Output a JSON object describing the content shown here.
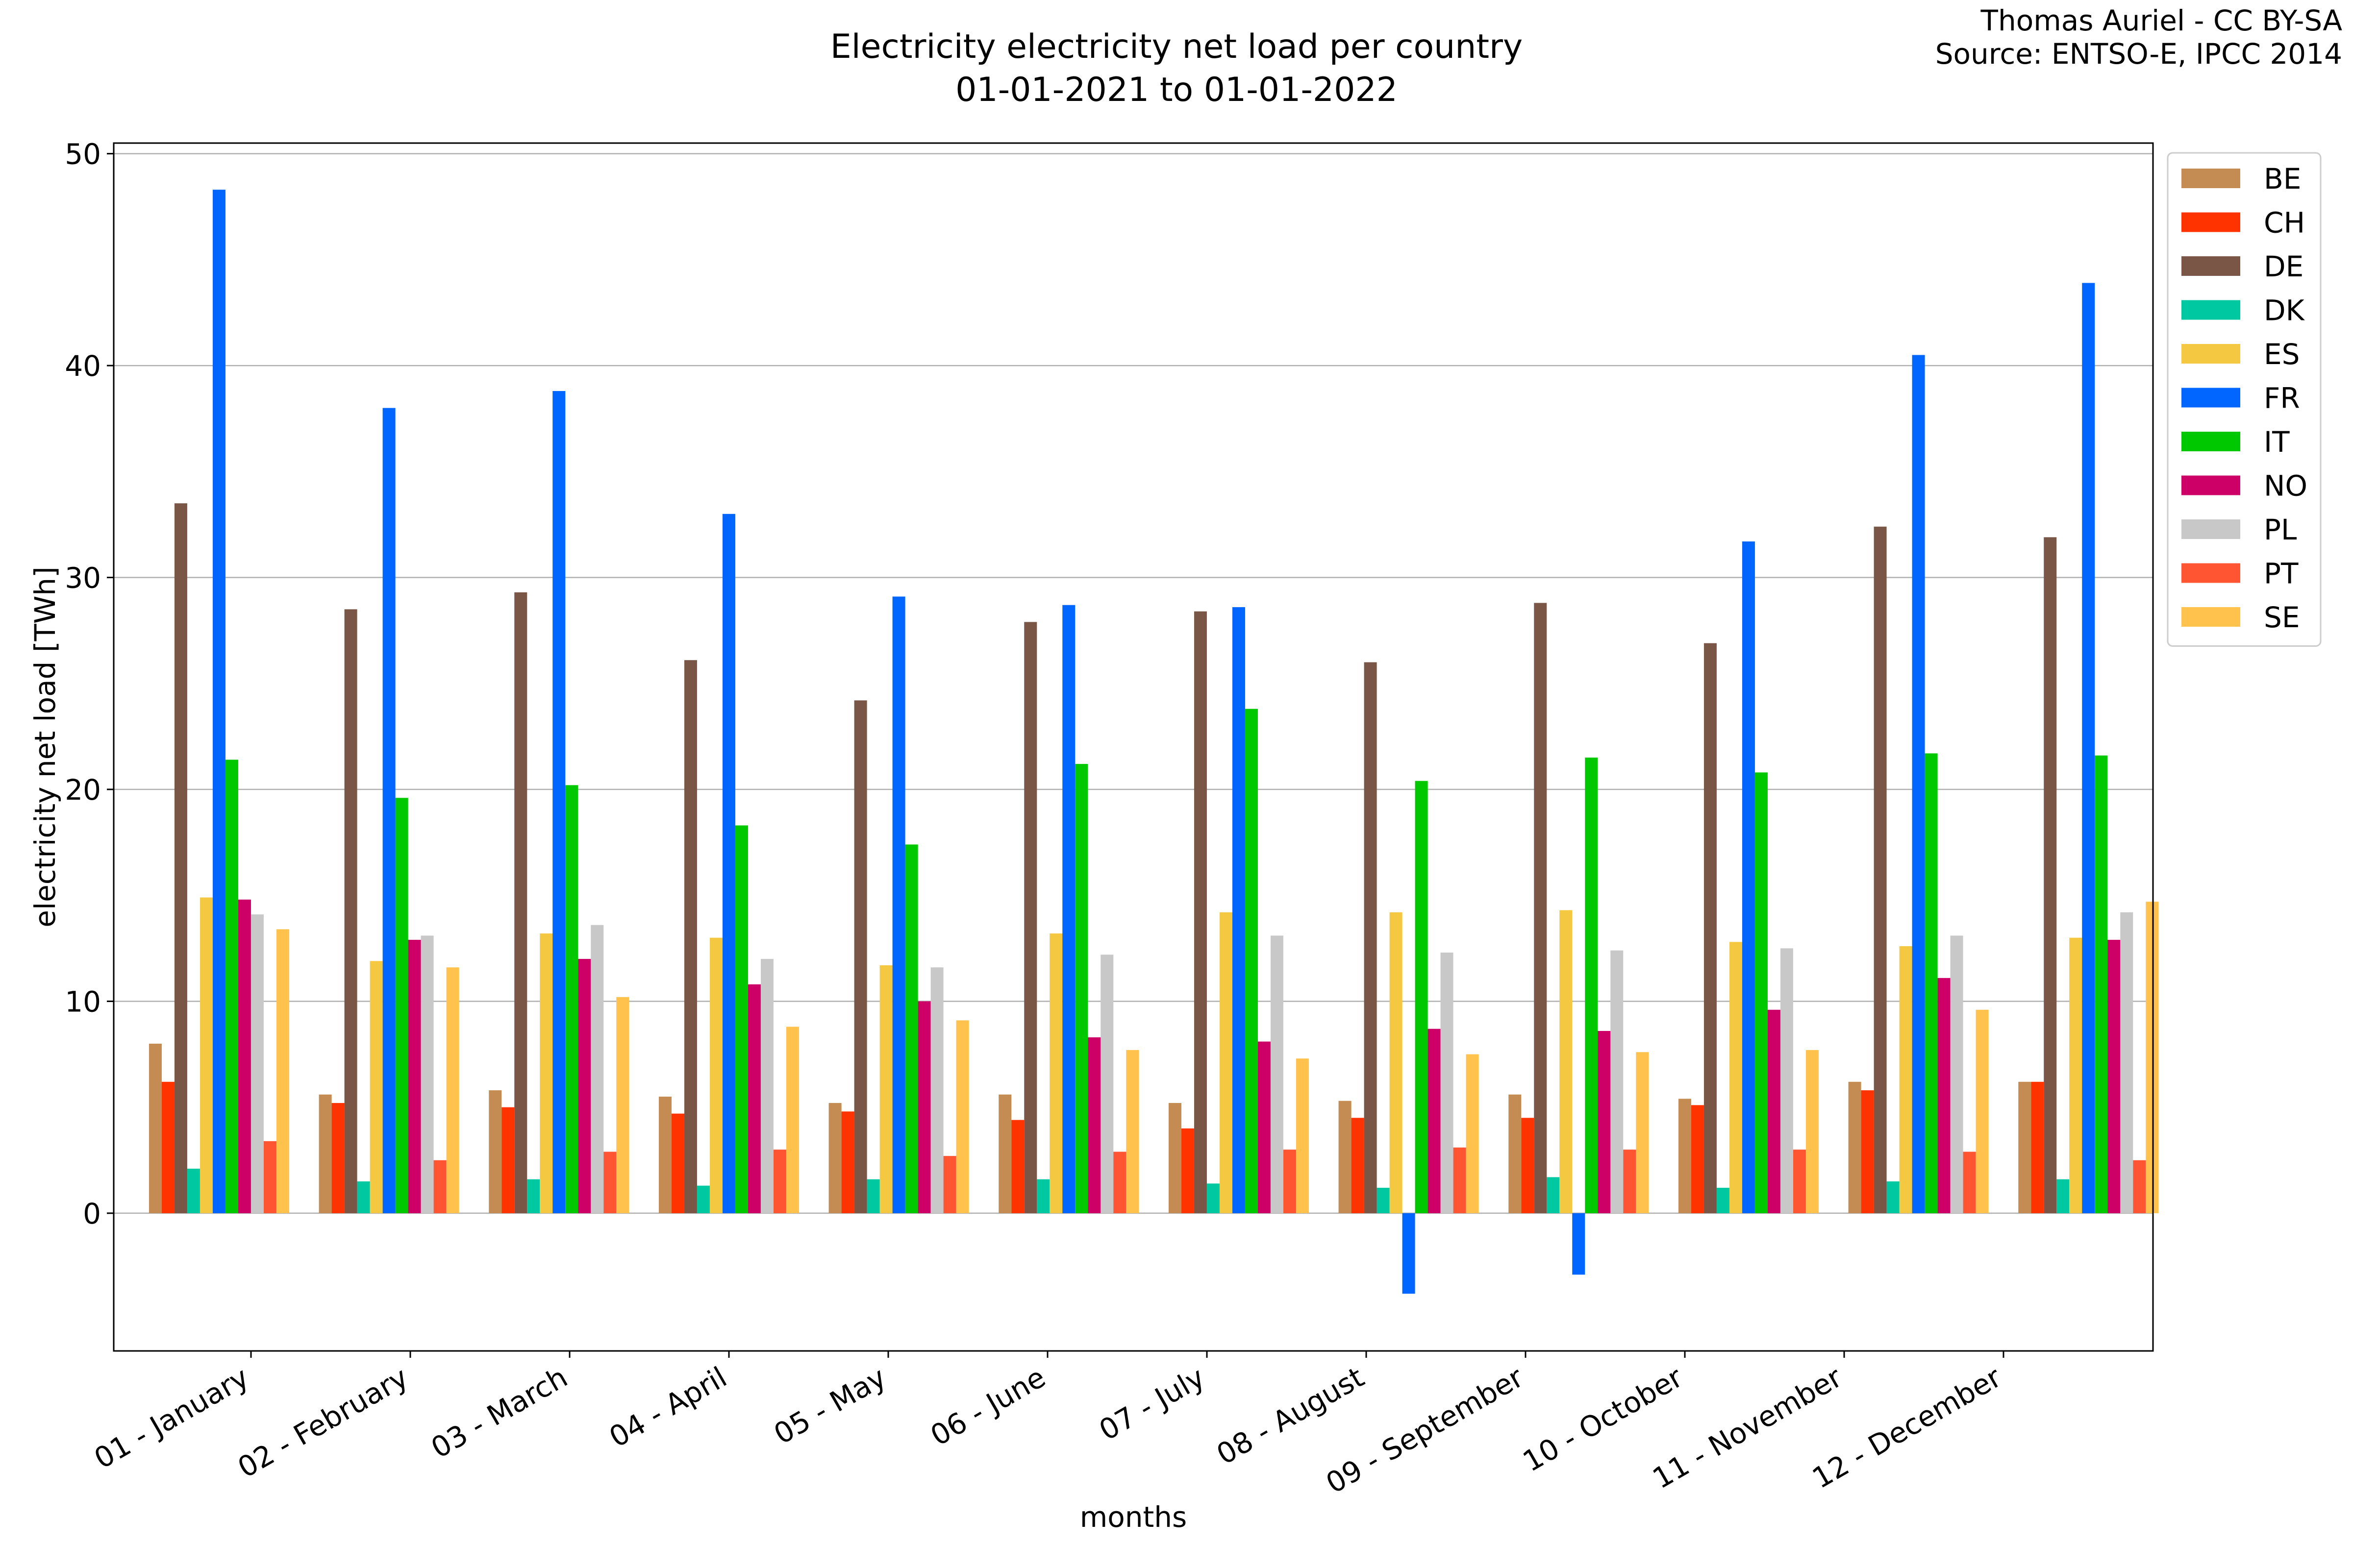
{
  "chart_data": {
    "type": "bar",
    "title_line1": "Electricity electricity net load per country",
    "title_line2": "01-01-2021 to 01-01-2022",
    "credit_line1": "Thomas Auriel - CC BY-SA",
    "credit_line2": "Source: ENTSO-E, IPCC 2014",
    "xlabel": "months",
    "ylabel": "electricity net load [TWh]",
    "ylim": [
      -6.5,
      50.5
    ],
    "yticks": [
      0,
      10,
      20,
      30,
      40,
      50
    ],
    "grid": "horizontal",
    "legend_position": "top-right",
    "categories": [
      "01 - January",
      "02 - February",
      "03 - March",
      "04 - April",
      "05 - May",
      "06 - June",
      "07 - July",
      "08 - August",
      "09 - September",
      "10 - October",
      "11 - November",
      "12 - December"
    ],
    "series": [
      {
        "name": "BE",
        "color": "#c48b53",
        "values": [
          8.0,
          5.6,
          5.8,
          5.5,
          5.2,
          5.6,
          5.2,
          5.3,
          5.6,
          5.4,
          6.2,
          6.2
        ]
      },
      {
        "name": "CH",
        "color": "#ff3300",
        "values": [
          6.2,
          5.2,
          5.0,
          4.7,
          4.8,
          4.4,
          4.0,
          4.5,
          4.5,
          5.1,
          5.8,
          6.2
        ]
      },
      {
        "name": "DE",
        "color": "#7a5647",
        "values": [
          33.5,
          28.5,
          29.3,
          26.1,
          24.2,
          27.9,
          28.4,
          26.0,
          28.8,
          26.9,
          32.4,
          31.9
        ]
      },
      {
        "name": "DK",
        "color": "#00c8a0",
        "values": [
          2.1,
          1.5,
          1.6,
          1.3,
          1.6,
          1.6,
          1.4,
          1.2,
          1.7,
          1.2,
          1.5,
          1.6
        ]
      },
      {
        "name": "ES",
        "color": "#f5c842",
        "values": [
          14.9,
          11.9,
          13.2,
          13.0,
          11.7,
          13.2,
          14.2,
          14.2,
          14.3,
          12.8,
          12.6,
          13.0
        ]
      },
      {
        "name": "FR",
        "color": "#0066ff",
        "values": [
          48.3,
          38.0,
          38.8,
          33.0,
          29.1,
          28.7,
          28.6,
          -3.8,
          -2.9,
          31.7,
          40.5,
          43.9
        ]
      },
      {
        "name": "IT",
        "color": "#00c800",
        "values": [
          21.4,
          19.6,
          20.2,
          18.3,
          17.4,
          21.2,
          23.8,
          20.4,
          21.5,
          20.8,
          21.7,
          21.6
        ]
      },
      {
        "name": "NO",
        "color": "#cc0066",
        "values": [
          14.8,
          12.9,
          12.0,
          10.8,
          10.0,
          8.3,
          8.1,
          8.7,
          8.6,
          9.6,
          11.1,
          12.9
        ]
      },
      {
        "name": "PL",
        "color": "#c8c8c8",
        "values": [
          14.1,
          13.1,
          13.6,
          12.0,
          11.6,
          12.2,
          13.1,
          12.3,
          12.4,
          12.5,
          13.1,
          14.2
        ]
      },
      {
        "name": "PT",
        "color": "#ff5533",
        "values": [
          3.4,
          2.5,
          2.9,
          3.0,
          2.7,
          2.9,
          3.0,
          3.1,
          3.0,
          3.0,
          2.9,
          2.5
        ]
      },
      {
        "name": "SE",
        "color": "#ffc34d",
        "values": [
          13.4,
          11.6,
          10.2,
          8.8,
          9.1,
          7.7,
          7.3,
          7.5,
          7.6,
          7.7,
          9.6,
          14.7
        ]
      }
    ]
  }
}
